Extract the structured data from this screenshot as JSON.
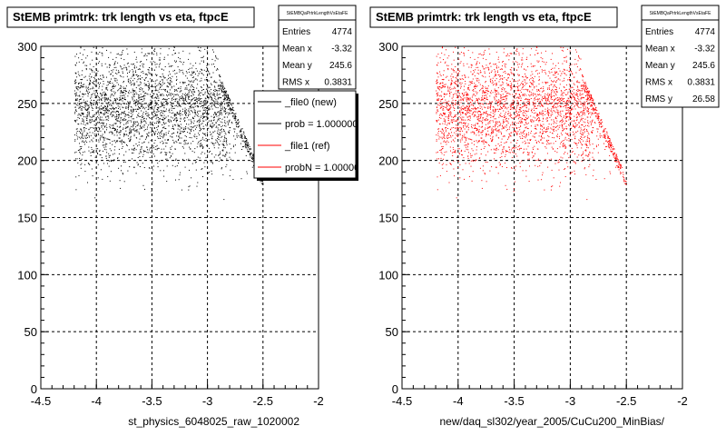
{
  "chart_data": [
    {
      "type": "scatter",
      "title": "StEMB primtrk: trk length vs eta, ftpcE",
      "xlabel": "st_physics_6048025_raw_1020002",
      "ylabel": "",
      "xlim": [
        -4.5,
        -2
      ],
      "ylim": [
        0,
        300
      ],
      "x_ticks": [
        "-4.5",
        "-4",
        "-3.5",
        "-3",
        "-2.5",
        "-2"
      ],
      "y_ticks": [
        "0",
        "50",
        "100",
        "150",
        "200",
        "250",
        "300"
      ],
      "grid": true,
      "marker_color": "#000000",
      "stats": {
        "name": "StEMBQaPrtrkLengthVsEtaFE",
        "rows": [
          {
            "label": "Entries",
            "value": "4774"
          },
          {
            "label": "Mean x",
            "value": "-3.32"
          },
          {
            "label": "Mean y",
            "value": "245.6"
          },
          {
            "label": "RMS x",
            "value": "0.3831"
          }
        ]
      },
      "legend": {
        "placement": "top-right",
        "entries": [
          {
            "label": "_file0 (new)",
            "color": "#000000"
          },
          {
            "label": "prob = 1.000000",
            "color": "#000000"
          },
          {
            "label": "_file1 (ref)",
            "color": "#ff0000"
          },
          {
            "label": "probN = 1.000000",
            "color": "#ff0000"
          }
        ]
      },
      "distribution": {
        "entries": 4774,
        "mean_x": -3.32,
        "mean_y": 245.6,
        "rms_x": 0.3831,
        "rms_y": 26.58,
        "shown_points": 3200,
        "seed": 17
      }
    },
    {
      "type": "scatter",
      "title": "StEMB primtrk: trk length vs eta, ftpcE",
      "xlabel": "new/daq_sl302/year_2005/CuCu200_MinBias/",
      "ylabel": "",
      "xlim": [
        -4.5,
        -2
      ],
      "ylim": [
        0,
        300
      ],
      "x_ticks": [
        "-4.5",
        "-4",
        "-3.5",
        "-3",
        "-2.5",
        "-2"
      ],
      "y_ticks": [
        "0",
        "50",
        "100",
        "150",
        "200",
        "250",
        "300"
      ],
      "grid": true,
      "marker_color": "#ff0000",
      "stats": {
        "name": "StEMBQaPrtrkLengthVsEtaFE",
        "rows": [
          {
            "label": "Entries",
            "value": "4774"
          },
          {
            "label": "Mean x",
            "value": "-3.32"
          },
          {
            "label": "Mean y",
            "value": "245.6"
          },
          {
            "label": "RMS x",
            "value": "0.3831"
          },
          {
            "label": "RMS y",
            "value": "26.58"
          }
        ]
      },
      "distribution": {
        "entries": 4774,
        "mean_x": -3.32,
        "mean_y": 245.6,
        "rms_x": 0.3831,
        "rms_y": 26.58,
        "shown_points": 3200,
        "seed": 17
      }
    }
  ]
}
